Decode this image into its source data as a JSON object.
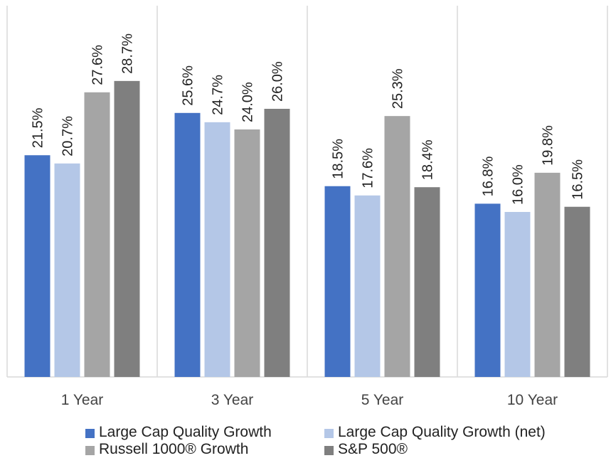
{
  "chart_data": {
    "type": "bar",
    "categories": [
      "1 Year",
      "3 Year",
      "5 Year",
      "10 Year"
    ],
    "series": [
      {
        "name": "Large Cap Quality Growth",
        "color": "#4472C4",
        "values": [
          21.5,
          25.6,
          18.5,
          16.8
        ],
        "labels": [
          "21.5%",
          "25.6%",
          "18.5%",
          "16.8%"
        ]
      },
      {
        "name": "Large Cap Quality Growth (net)",
        "color": "#B4C7E7",
        "values": [
          20.7,
          24.7,
          17.6,
          16.0
        ],
        "labels": [
          "20.7%",
          "24.7%",
          "17.6%",
          "16.0%"
        ]
      },
      {
        "name": "Russell 1000® Growth",
        "color": "#A5A5A5",
        "values": [
          27.6,
          24.0,
          25.3,
          19.8
        ],
        "labels": [
          "27.6%",
          "24.0%",
          "25.3%",
          "19.8%"
        ]
      },
      {
        "name": "S&P 500®",
        "color": "#7F7F7F",
        "values": [
          28.7,
          26.0,
          18.4,
          16.5
        ],
        "labels": [
          "28.7%",
          "26.0%",
          "18.4%",
          "16.5%"
        ]
      }
    ],
    "ylim": [
      0,
      36
    ],
    "grid": "vertical separators between categories",
    "legend_position": "bottom"
  }
}
